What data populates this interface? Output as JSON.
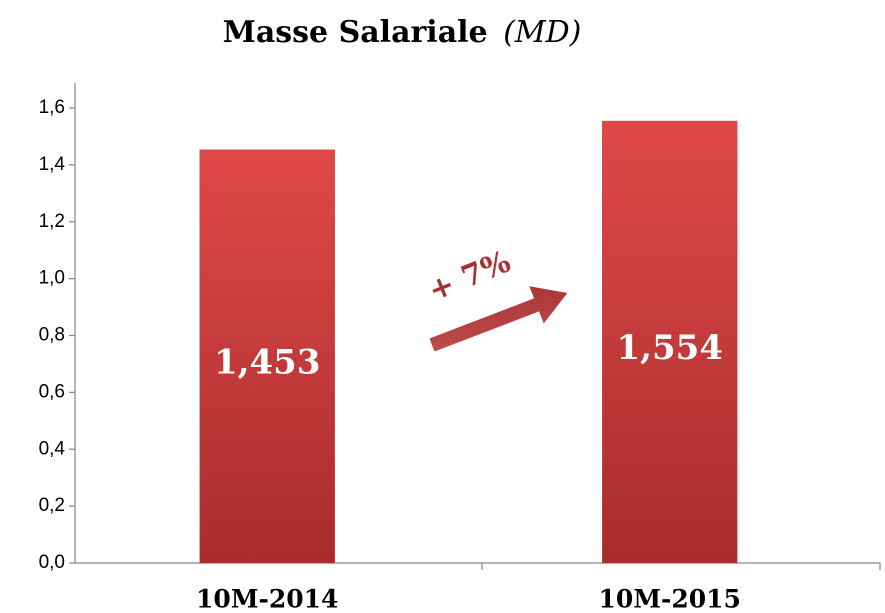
{
  "chart_data": {
    "type": "bar",
    "title": "Masse Salariale",
    "title_unit": "(MD)",
    "categories": [
      "10M-2014",
      "10M-2015"
    ],
    "values": [
      1.453,
      1.554
    ],
    "value_labels": [
      "1,453",
      "1,554"
    ],
    "color": "#d63c3c",
    "ylim": [
      0,
      1.6
    ],
    "yticks": [
      {
        "value": 0,
        "label": "0,0"
      },
      {
        "value": 0.2,
        "label": "0,2"
      },
      {
        "value": 0.4,
        "label": "0,4"
      },
      {
        "value": 0.6,
        "label": "0,6"
      },
      {
        "value": 0.8,
        "label": "0,8"
      },
      {
        "value": 1.0,
        "label": "1,0"
      },
      {
        "value": 1.2,
        "label": "1,2"
      },
      {
        "value": 1.4,
        "label": "1,4"
      },
      {
        "value": 1.6,
        "label": "1,6"
      }
    ],
    "grid": false,
    "annotation": "+ 7%"
  }
}
